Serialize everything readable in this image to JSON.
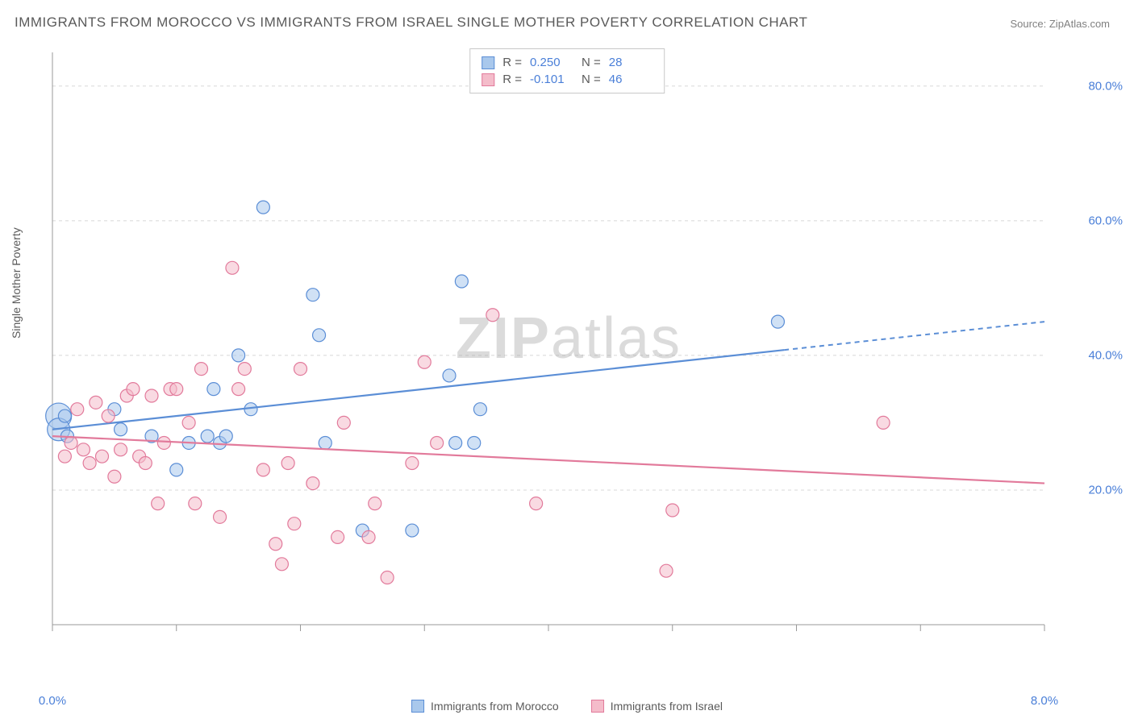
{
  "title": "IMMIGRANTS FROM MOROCCO VS IMMIGRANTS FROM ISRAEL SINGLE MOTHER POVERTY CORRELATION CHART",
  "source": "Source: ZipAtlas.com",
  "y_axis_label": "Single Mother Poverty",
  "watermark": "ZIPatlas",
  "chart": {
    "type": "scatter",
    "xlim": [
      0,
      8
    ],
    "ylim": [
      0,
      85
    ],
    "x_ticks": [
      0,
      8
    ],
    "x_tick_labels": [
      "0.0%",
      "8.0%"
    ],
    "y_ticks": [
      20,
      40,
      60,
      80
    ],
    "y_tick_labels": [
      "20.0%",
      "40.0%",
      "60.0%",
      "80.0%"
    ],
    "grid_color": "#d8d8d8",
    "axis_color": "#999999",
    "background_color": "#ffffff",
    "series": [
      {
        "name": "Immigrants from Morocco",
        "color_fill": "#a9c8ec",
        "color_stroke": "#5b8ed6",
        "fill_opacity": 0.55,
        "marker_r": 8,
        "R": "0.250",
        "N": "28",
        "regression": {
          "x1": 0,
          "y1": 29,
          "x2": 8,
          "y2": 45,
          "solid_until_x": 5.9
        },
        "points": [
          [
            0.05,
            31,
            16
          ],
          [
            0.05,
            29,
            14
          ],
          [
            0.1,
            31,
            8
          ],
          [
            0.12,
            28,
            8
          ],
          [
            0.5,
            32,
            8
          ],
          [
            0.55,
            29,
            8
          ],
          [
            0.8,
            28,
            8
          ],
          [
            1.0,
            23,
            8
          ],
          [
            1.1,
            27,
            8
          ],
          [
            1.25,
            28,
            8
          ],
          [
            1.3,
            35,
            8
          ],
          [
            1.35,
            27,
            8
          ],
          [
            1.4,
            28,
            8
          ],
          [
            1.5,
            40,
            8
          ],
          [
            1.6,
            32,
            8
          ],
          [
            1.7,
            62,
            8
          ],
          [
            2.1,
            49,
            8
          ],
          [
            2.15,
            43,
            8
          ],
          [
            2.2,
            27,
            8
          ],
          [
            2.5,
            14,
            8
          ],
          [
            2.9,
            14,
            8
          ],
          [
            3.2,
            37,
            8
          ],
          [
            3.25,
            27,
            8
          ],
          [
            3.3,
            51,
            8
          ],
          [
            3.4,
            27,
            8
          ],
          [
            3.45,
            32,
            8
          ],
          [
            5.85,
            45,
            8
          ]
        ]
      },
      {
        "name": "Immigrants from Israel",
        "color_fill": "#f4bcca",
        "color_stroke": "#e27a9b",
        "fill_opacity": 0.55,
        "marker_r": 8,
        "R": "-0.101",
        "N": "46",
        "regression": {
          "x1": 0,
          "y1": 28,
          "x2": 8,
          "y2": 21,
          "solid_until_x": 8
        },
        "points": [
          [
            0.1,
            25,
            8
          ],
          [
            0.15,
            27,
            8
          ],
          [
            0.2,
            32,
            8
          ],
          [
            0.25,
            26,
            8
          ],
          [
            0.3,
            24,
            8
          ],
          [
            0.35,
            33,
            8
          ],
          [
            0.4,
            25,
            8
          ],
          [
            0.45,
            31,
            8
          ],
          [
            0.5,
            22,
            8
          ],
          [
            0.55,
            26,
            8
          ],
          [
            0.6,
            34,
            8
          ],
          [
            0.65,
            35,
            8
          ],
          [
            0.7,
            25,
            8
          ],
          [
            0.75,
            24,
            8
          ],
          [
            0.8,
            34,
            8
          ],
          [
            0.85,
            18,
            8
          ],
          [
            0.9,
            27,
            8
          ],
          [
            0.95,
            35,
            8
          ],
          [
            1.0,
            35,
            8
          ],
          [
            1.1,
            30,
            8
          ],
          [
            1.15,
            18,
            8
          ],
          [
            1.2,
            38,
            8
          ],
          [
            1.35,
            16,
            8
          ],
          [
            1.45,
            53,
            8
          ],
          [
            1.5,
            35,
            8
          ],
          [
            1.55,
            38,
            8
          ],
          [
            1.7,
            23,
            8
          ],
          [
            1.8,
            12,
            8
          ],
          [
            1.85,
            9,
            8
          ],
          [
            1.9,
            24,
            8
          ],
          [
            1.95,
            15,
            8
          ],
          [
            2.0,
            38,
            8
          ],
          [
            2.1,
            21,
            8
          ],
          [
            2.3,
            13,
            8
          ],
          [
            2.35,
            30,
            8
          ],
          [
            2.55,
            13,
            8
          ],
          [
            2.6,
            18,
            8
          ],
          [
            2.7,
            7,
            8
          ],
          [
            2.9,
            24,
            8
          ],
          [
            3.0,
            39,
            8
          ],
          [
            3.1,
            27,
            8
          ],
          [
            3.55,
            46,
            8
          ],
          [
            3.9,
            18,
            8
          ],
          [
            4.95,
            8,
            8
          ],
          [
            5.0,
            17,
            8
          ],
          [
            6.7,
            30,
            8
          ]
        ]
      }
    ]
  },
  "legend": {
    "items": [
      {
        "label": "Immigrants from Morocco",
        "fill": "#a9c8ec",
        "stroke": "#5b8ed6"
      },
      {
        "label": "Immigrants from Israel",
        "fill": "#f4bcca",
        "stroke": "#e27a9b"
      }
    ]
  }
}
